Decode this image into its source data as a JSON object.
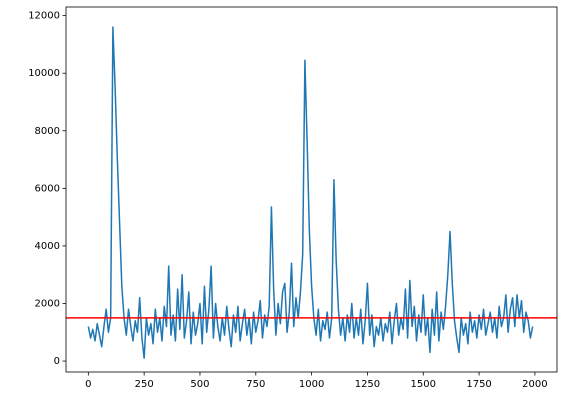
{
  "chart_data": {
    "type": "line",
    "x": [
      0,
      10,
      20,
      30,
      40,
      50,
      60,
      70,
      80,
      90,
      100,
      110,
      120,
      130,
      140,
      150,
      160,
      170,
      180,
      190,
      200,
      210,
      220,
      230,
      240,
      250,
      260,
      270,
      280,
      290,
      300,
      310,
      320,
      330,
      340,
      350,
      360,
      370,
      380,
      390,
      400,
      410,
      420,
      430,
      440,
      450,
      460,
      470,
      480,
      490,
      500,
      510,
      520,
      530,
      540,
      550,
      560,
      570,
      580,
      590,
      600,
      610,
      620,
      630,
      640,
      650,
      660,
      670,
      680,
      690,
      700,
      710,
      720,
      730,
      740,
      750,
      760,
      770,
      780,
      790,
      800,
      810,
      820,
      830,
      840,
      850,
      860,
      870,
      880,
      890,
      900,
      910,
      920,
      930,
      940,
      950,
      960,
      970,
      980,
      990,
      1000,
      1010,
      1020,
      1030,
      1040,
      1050,
      1060,
      1070,
      1080,
      1090,
      1100,
      1110,
      1120,
      1130,
      1140,
      1150,
      1160,
      1170,
      1180,
      1190,
      1200,
      1210,
      1220,
      1230,
      1240,
      1250,
      1260,
      1270,
      1280,
      1290,
      1300,
      1310,
      1320,
      1330,
      1340,
      1350,
      1360,
      1370,
      1380,
      1390,
      1400,
      1410,
      1420,
      1430,
      1440,
      1450,
      1460,
      1470,
      1480,
      1490,
      1500,
      1510,
      1520,
      1530,
      1540,
      1550,
      1560,
      1570,
      1580,
      1590,
      1600,
      1610,
      1620,
      1630,
      1640,
      1650,
      1660,
      1670,
      1680,
      1690,
      1700,
      1710,
      1720,
      1730,
      1740,
      1750,
      1760,
      1770,
      1780,
      1790,
      1800,
      1810,
      1820,
      1830,
      1840,
      1850,
      1860,
      1870,
      1880,
      1890,
      1900,
      1910,
      1920,
      1930,
      1940,
      1950,
      1960,
      1970,
      1980,
      1990
    ],
    "series": [
      {
        "color": "#1f77b4",
        "values": [
          1200,
          800,
          1100,
          700,
          1300,
          900,
          500,
          1200,
          1800,
          1000,
          1500,
          11600,
          9500,
          7000,
          4800,
          2600,
          1500,
          900,
          1800,
          1200,
          700,
          1400,
          1000,
          2200,
          800,
          100,
          1500,
          900,
          1300,
          600,
          1800,
          1000,
          1500,
          700,
          1900,
          1200,
          3300,
          900,
          1600,
          700,
          2500,
          1100,
          3000,
          800,
          1400,
          2400,
          600,
          1700,
          900,
          1300,
          2000,
          600,
          2600,
          1000,
          1800,
          3300,
          800,
          2000,
          1200,
          700,
          1500,
          900,
          1900,
          1100,
          500,
          1600,
          1000,
          1900,
          700,
          1300,
          1800,
          900,
          1500,
          600,
          1700,
          1000,
          1400,
          2100,
          800,
          1600,
          1200,
          1900,
          5350,
          2500,
          900,
          2000,
          1300,
          2400,
          2700,
          1000,
          1700,
          3400,
          1200,
          2200,
          1500,
          2400,
          3700,
          10450,
          7600,
          4500,
          2600,
          1500,
          900,
          1800,
          700,
          1400,
          1100,
          1700,
          800,
          1500,
          6300,
          3500,
          1800,
          900,
          1500,
          700,
          1600,
          1000,
          2000,
          800,
          1500,
          900,
          1800,
          600,
          1400,
          2700,
          900,
          1600,
          500,
          1200,
          900,
          1500,
          700,
          1300,
          1000,
          1700,
          600,
          1400,
          2000,
          900,
          1500,
          1100,
          2500,
          800,
          2800,
          1200,
          1900,
          700,
          1600,
          1000,
          2300,
          900,
          1500,
          300,
          1800,
          900,
          2400,
          700,
          1700,
          1100,
          1900,
          3000,
          4500,
          2700,
          1400,
          800,
          300,
          1500,
          900,
          1300,
          600,
          1700,
          1000,
          1400,
          800,
          1600,
          1100,
          1800,
          900,
          1300,
          1700,
          1000,
          1500,
          800,
          1900,
          1200,
          1500,
          2300,
          1000,
          1800,
          2200,
          1200,
          2300,
          1500,
          2100,
          1000,
          1700,
          1400,
          800,
          1200
        ]
      }
    ],
    "hline": {
      "value": 1500,
      "color": "#ff0000"
    },
    "xlim": [
      -100,
      2099
    ],
    "xticks": [
      0,
      250,
      500,
      750,
      1000,
      1250,
      1500,
      1750,
      2000
    ],
    "ylim": [
      -380,
      12300
    ],
    "yticks": [
      0,
      2000,
      4000,
      6000,
      8000,
      10000,
      12000
    ]
  }
}
